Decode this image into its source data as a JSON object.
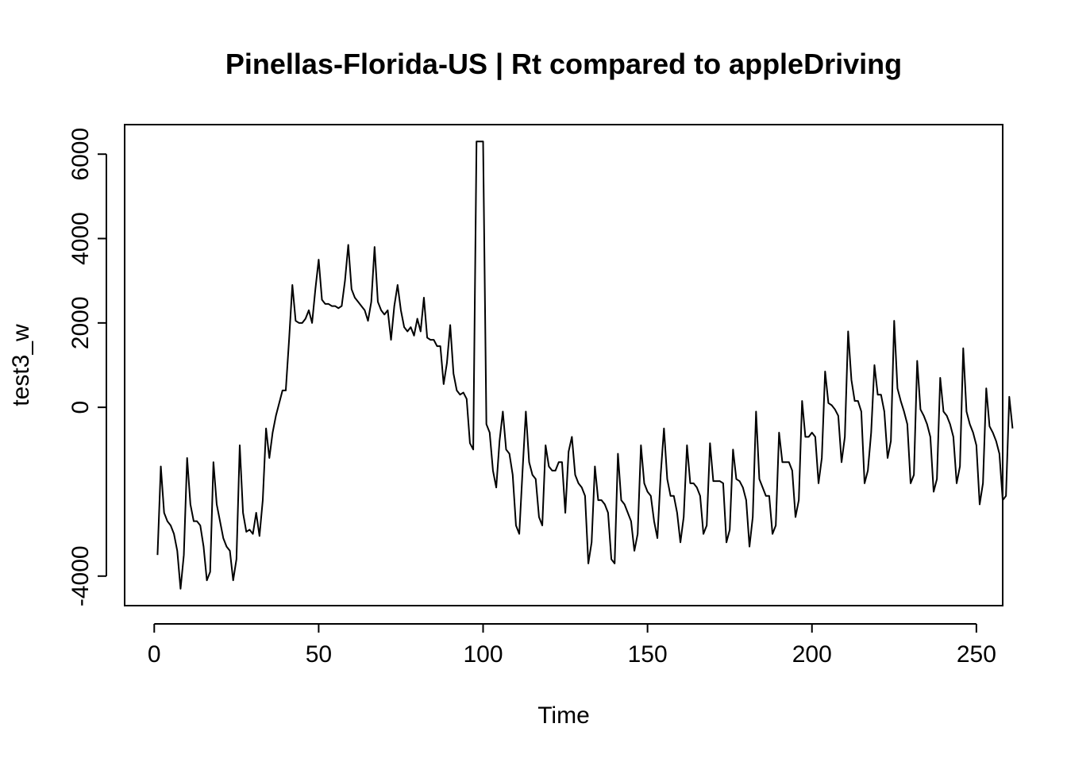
{
  "chart_data": {
    "type": "line",
    "title": "Pinellas-Florida-US | Rt compared to appleDriving",
    "xlabel": "Time",
    "ylabel": "test3_w",
    "xlim": [
      -9,
      258
    ],
    "ylim": [
      -4700,
      6700
    ],
    "xticks": [
      0,
      50,
      100,
      150,
      200,
      250
    ],
    "yticks": [
      -4000,
      0,
      2000,
      4000,
      6000
    ],
    "x_tick_labels": [
      "0",
      "50",
      "100",
      "150",
      "200",
      "250"
    ],
    "y_tick_labels": [
      "-4000",
      "0",
      "2000",
      "4000",
      "6000"
    ],
    "grid": false,
    "series": [
      {
        "x_start": 1,
        "values": [
          -3500,
          -1400,
          -2500,
          -2700,
          -2800,
          -3000,
          -3400,
          -4300,
          -3500,
          -1200,
          -2300,
          -2700,
          -2700,
          -2800,
          -3300,
          -4100,
          -3900,
          -1300,
          -2300,
          -2700,
          -3100,
          -3300,
          -3400,
          -4100,
          -3600,
          -900,
          -2500,
          -2950,
          -2900,
          -3000,
          -2500,
          -3050,
          -2200,
          -500,
          -1200,
          -600,
          -200,
          100,
          400,
          400,
          1600,
          2900,
          2050,
          2000,
          2000,
          2100,
          2300,
          2000,
          2800,
          3500,
          2550,
          2450,
          2450,
          2400,
          2400,
          2350,
          2400,
          3000,
          3850,
          2800,
          2600,
          2500,
          2400,
          2300,
          2050,
          2500,
          3800,
          2500,
          2300,
          2200,
          2300,
          1600,
          2400,
          2900,
          2300,
          1900,
          1800,
          1900,
          1700,
          2100,
          1800,
          2600,
          1650,
          1600,
          1600,
          1450,
          1450,
          550,
          1050,
          1950,
          800,
          400,
          300,
          350,
          200,
          -850,
          -1000,
          6300,
          6300,
          6300,
          -400,
          -600,
          -1500,
          -1900,
          -800,
          -100,
          -1000,
          -1100,
          -1600,
          -2800,
          -3000,
          -1500,
          -100,
          -1300,
          -1600,
          -1700,
          -2600,
          -2800,
          -900,
          -1400,
          -1500,
          -1500,
          -1300,
          -1300,
          -2500,
          -1050,
          -700,
          -1600,
          -1800,
          -1900,
          -2100,
          -3700,
          -3200,
          -1400,
          -2200,
          -2200,
          -2300,
          -2500,
          -3600,
          -3700,
          -1100,
          -2200,
          -2300,
          -2500,
          -2700,
          -3400,
          -3000,
          -900,
          -1800,
          -2000,
          -2100,
          -2700,
          -3100,
          -1600,
          -500,
          -1700,
          -2100,
          -2100,
          -2500,
          -3200,
          -2600,
          -900,
          -1800,
          -1800,
          -1900,
          -2100,
          -3000,
          -2800,
          -850,
          -1750,
          -1750,
          -1750,
          -1800,
          -3200,
          -2900,
          -1000,
          -1700,
          -1750,
          -1900,
          -2200,
          -3300,
          -2600,
          -100,
          -1700,
          -1900,
          -2100,
          -2100,
          -3000,
          -2800,
          -600,
          -1300,
          -1300,
          -1300,
          -1500,
          -2600,
          -2200,
          150,
          -700,
          -700,
          -600,
          -700,
          -1800,
          -1200,
          850,
          100,
          50,
          -50,
          -200,
          -1300,
          -700,
          1800,
          650,
          150,
          150,
          -100,
          -1800,
          -1500,
          -600,
          1000,
          300,
          300,
          -100,
          -1200,
          -800,
          2050,
          450,
          150,
          -100,
          -400,
          -1800,
          -1600,
          1100,
          -50,
          -200,
          -400,
          -700,
          -2000,
          -1700,
          700,
          -100,
          -200,
          -400,
          -700,
          -1800,
          -1400,
          1400,
          -100,
          -400,
          -600,
          -900,
          -2300,
          -1800,
          450,
          -450,
          -600,
          -800,
          -1100,
          -2200,
          -2100,
          250,
          -500
        ]
      }
    ]
  }
}
